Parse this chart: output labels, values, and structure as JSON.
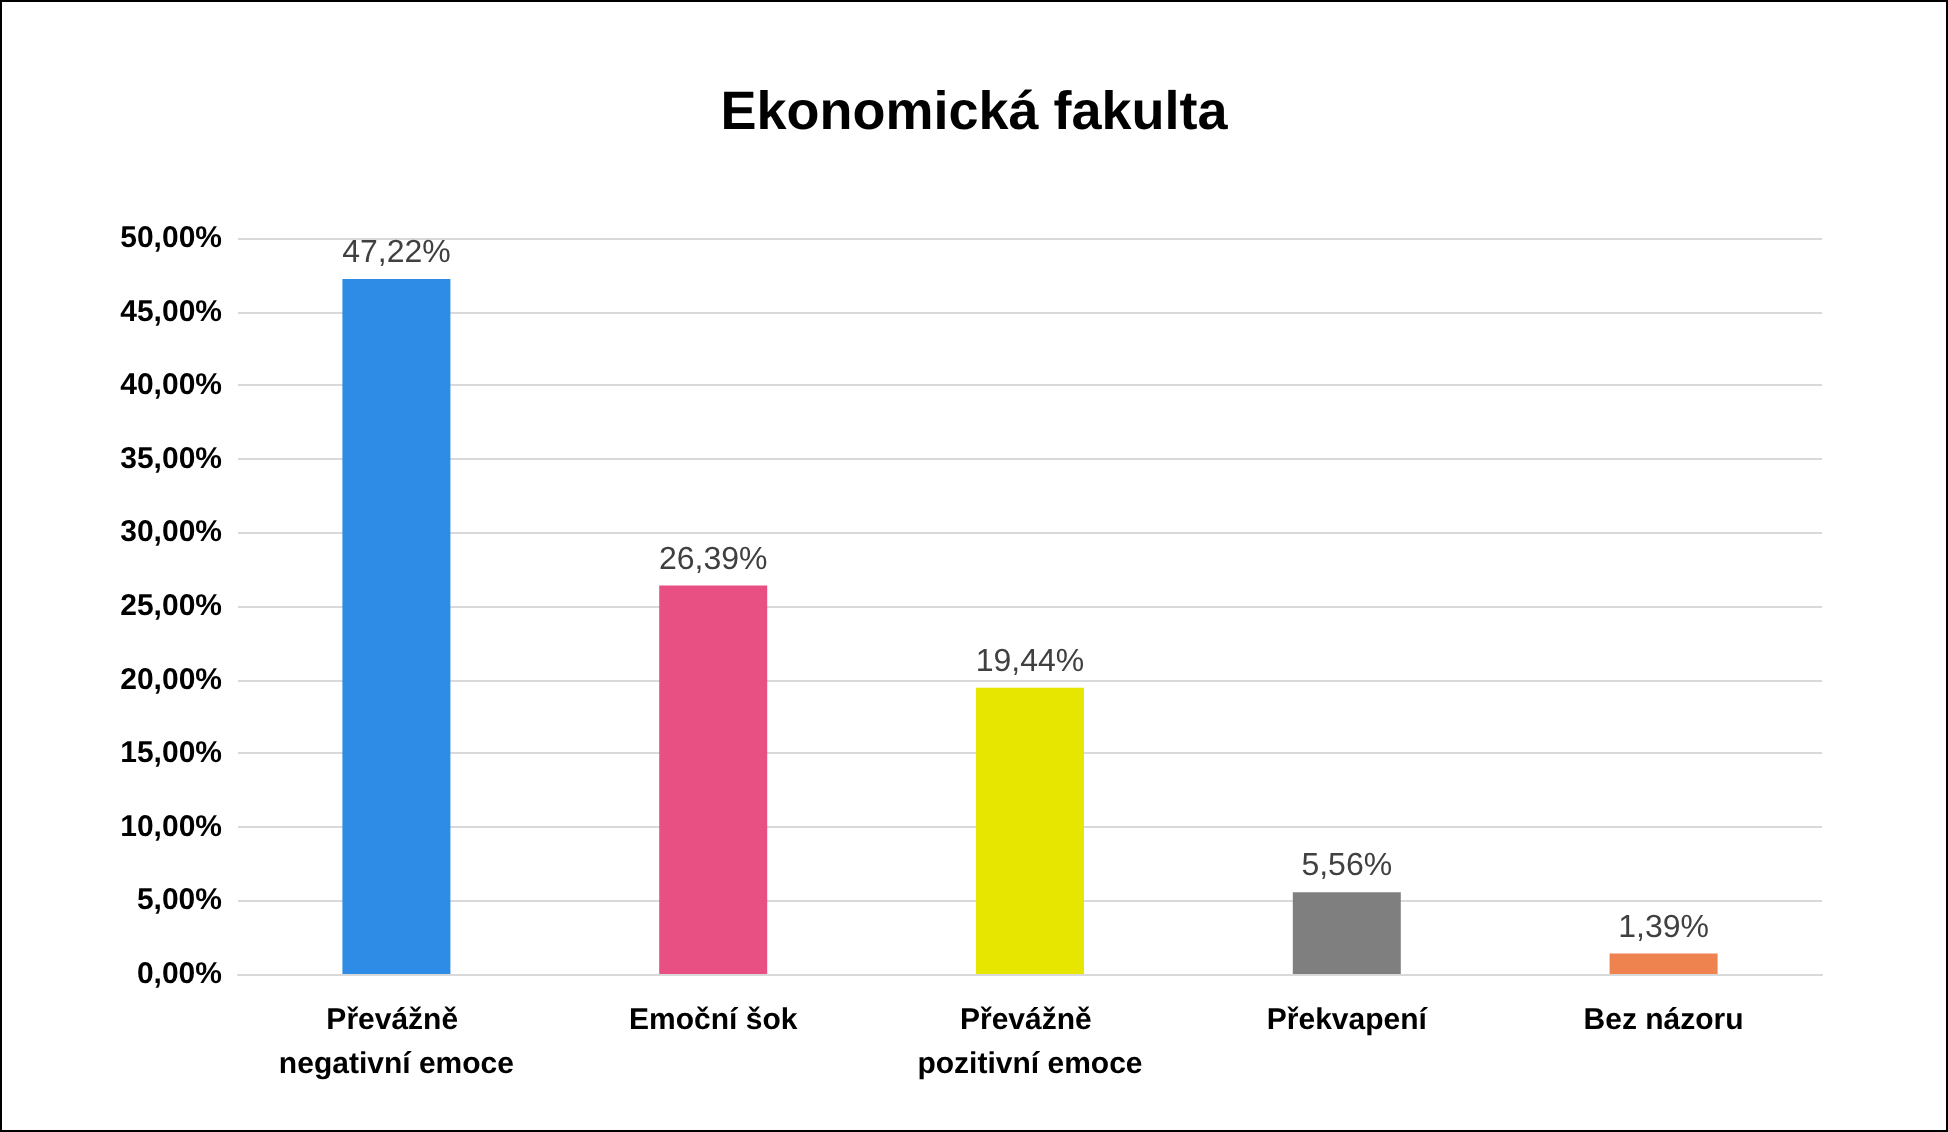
{
  "chart_data": {
    "type": "bar",
    "title": "Ekonomická fakulta",
    "categories": [
      "Převážně negativní emoce",
      "Emoční šok",
      "Převážně pozitivní emoce",
      "Překvapení",
      "Bez názoru"
    ],
    "values": [
      47.22,
      26.39,
      19.44,
      5.56,
      1.39
    ],
    "colors": [
      "#2e8ce6",
      "#e84f82",
      "#e6e600",
      "#7f7f7f",
      "#ee8350"
    ],
    "value_labels": [
      "47,22%",
      "26,39%",
      "19,44%",
      "5,56%",
      "1,39%"
    ],
    "ylim": [
      0,
      50
    ],
    "yticks": [
      {
        "value": 0,
        "label": "0,00%"
      },
      {
        "value": 5,
        "label": "5,00%"
      },
      {
        "value": 10,
        "label": "10,00%"
      },
      {
        "value": 15,
        "label": "15,00%"
      },
      {
        "value": 20,
        "label": "20,00%"
      },
      {
        "value": 25,
        "label": "25,00%"
      },
      {
        "value": 30,
        "label": "30,00%"
      },
      {
        "value": 35,
        "label": "35,00%"
      },
      {
        "value": 40,
        "label": "40,00%"
      },
      {
        "value": 45,
        "label": "45,00%"
      },
      {
        "value": 50,
        "label": "50,00%"
      }
    ],
    "grid": "y"
  }
}
